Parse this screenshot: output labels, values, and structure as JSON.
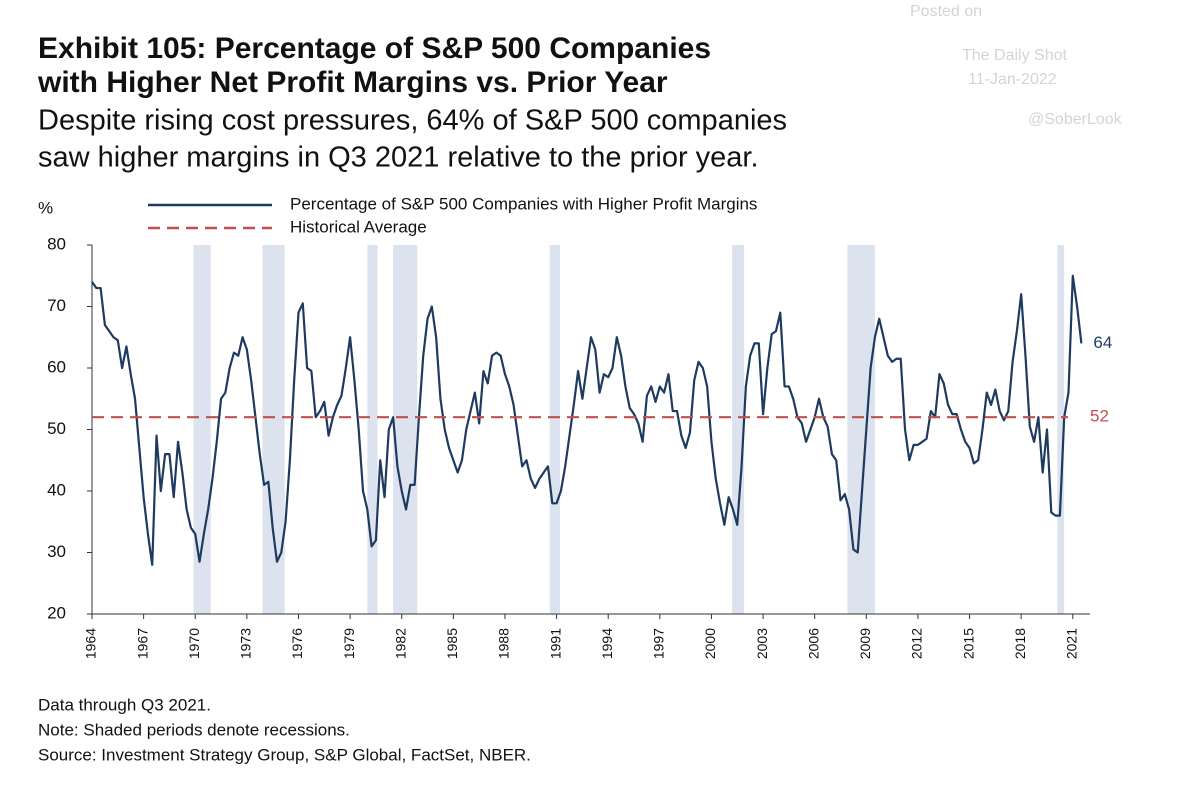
{
  "chart_data": {
    "type": "line",
    "title": [
      "Exhibit 105: Percentage of S&P 500 Companies",
      "with Higher Net Profit Margins vs. Prior Year"
    ],
    "subtitle": [
      "Despite rising cost pressures, 64% of S&P 500 companies",
      "saw higher margins in Q3 2021 relative to the prior year."
    ],
    "y_label": "%",
    "watermark": [
      "Posted on",
      "The Daily Shot",
      "11-Jan-2022",
      "@SoberLook"
    ],
    "notes": [
      "Data through Q3 2021.",
      "Note: Shaded periods denote recessions.",
      "Source: Investment Strategy Group, S&P Global, FactSet, NBER."
    ],
    "xlim": [
      1964,
      2022
    ],
    "xticks": [
      1964,
      1967,
      1970,
      1973,
      1976,
      1979,
      1982,
      1985,
      1988,
      1991,
      1994,
      1997,
      2000,
      2003,
      2006,
      2009,
      2012,
      2015,
      2018,
      2021
    ],
    "ylim": [
      20,
      80
    ],
    "yticks": [
      20,
      30,
      40,
      50,
      60,
      70,
      80
    ],
    "grid": false,
    "recessions": [
      [
        1969.9,
        1970.9
      ],
      [
        1973.9,
        1975.2
      ],
      [
        1980.0,
        1980.6
      ],
      [
        1981.5,
        1982.9
      ],
      [
        1990.6,
        1991.2
      ],
      [
        2001.2,
        2001.9
      ],
      [
        2007.9,
        2009.5
      ],
      [
        2020.1,
        2020.5
      ]
    ],
    "recession_color": "#dde3ee",
    "x": [
      1964.0,
      1964.25,
      1964.5,
      1964.75,
      1965.0,
      1965.25,
      1965.5,
      1965.75,
      1966.0,
      1966.25,
      1966.5,
      1966.75,
      1967.0,
      1967.25,
      1967.5,
      1967.75,
      1968.0,
      1968.25,
      1968.5,
      1968.75,
      1969.0,
      1969.25,
      1969.5,
      1969.75,
      1970.0,
      1970.25,
      1970.5,
      1970.75,
      1971.0,
      1971.25,
      1971.5,
      1971.75,
      1972.0,
      1972.25,
      1972.5,
      1972.75,
      1973.0,
      1973.25,
      1973.5,
      1973.75,
      1974.0,
      1974.25,
      1974.5,
      1974.75,
      1975.0,
      1975.25,
      1975.5,
      1975.75,
      1976.0,
      1976.25,
      1976.5,
      1976.75,
      1977.0,
      1977.25,
      1977.5,
      1977.75,
      1978.0,
      1978.25,
      1978.5,
      1978.75,
      1979.0,
      1979.25,
      1979.5,
      1979.75,
      1980.0,
      1980.25,
      1980.5,
      1980.75,
      1981.0,
      1981.25,
      1981.5,
      1981.75,
      1982.0,
      1982.25,
      1982.5,
      1982.75,
      1983.0,
      1983.25,
      1983.5,
      1983.75,
      1984.0,
      1984.25,
      1984.5,
      1984.75,
      1985.0,
      1985.25,
      1985.5,
      1985.75,
      1986.0,
      1986.25,
      1986.5,
      1986.75,
      1987.0,
      1987.25,
      1987.5,
      1987.75,
      1988.0,
      1988.25,
      1988.5,
      1988.75,
      1989.0,
      1989.25,
      1989.5,
      1989.75,
      1990.0,
      1990.25,
      1990.5,
      1990.75,
      1991.0,
      1991.25,
      1991.5,
      1991.75,
      1992.0,
      1992.25,
      1992.5,
      1992.75,
      1993.0,
      1993.25,
      1993.5,
      1993.75,
      1994.0,
      1994.25,
      1994.5,
      1994.75,
      1995.0,
      1995.25,
      1995.5,
      1995.75,
      1996.0,
      1996.25,
      1996.5,
      1996.75,
      1997.0,
      1997.25,
      1997.5,
      1997.75,
      1998.0,
      1998.25,
      1998.5,
      1998.75,
      1999.0,
      1999.25,
      1999.5,
      1999.75,
      2000.0,
      2000.25,
      2000.5,
      2000.75,
      2001.0,
      2001.25,
      2001.5,
      2001.75,
      2002.0,
      2002.25,
      2002.5,
      2002.75,
      2003.0,
      2003.25,
      2003.5,
      2003.75,
      2004.0,
      2004.25,
      2004.5,
      2004.75,
      2005.0,
      2005.25,
      2005.5,
      2005.75,
      2006.0,
      2006.25,
      2006.5,
      2006.75,
      2007.0,
      2007.25,
      2007.5,
      2007.75,
      2008.0,
      2008.25,
      2008.5,
      2008.75,
      2009.0,
      2009.25,
      2009.5,
      2009.75,
      2010.0,
      2010.25,
      2010.5,
      2010.75,
      2011.0,
      2011.25,
      2011.5,
      2011.75,
      2012.0,
      2012.25,
      2012.5,
      2012.75,
      2013.0,
      2013.25,
      2013.5,
      2013.75,
      2014.0,
      2014.25,
      2014.5,
      2014.75,
      2015.0,
      2015.25,
      2015.5,
      2015.75,
      2016.0,
      2016.25,
      2016.5,
      2016.75,
      2017.0,
      2017.25,
      2017.5,
      2017.75,
      2018.0,
      2018.25,
      2018.5,
      2018.75,
      2019.0,
      2019.25,
      2019.5,
      2019.75,
      2020.0,
      2020.25,
      2020.5,
      2020.75,
      2021.0,
      2021.25,
      2021.5
    ],
    "series": [
      {
        "name": "Percentage of S&P 500 Companies with Higher Profit Margins",
        "color": "#1f3a5f",
        "values": [
          74,
          73,
          73,
          67,
          66,
          65,
          64.5,
          60,
          63.5,
          59,
          55,
          47,
          39,
          33,
          28,
          49,
          40,
          46,
          46,
          39,
          48,
          43,
          37,
          34,
          33,
          28.5,
          33,
          37,
          42,
          48,
          55,
          56,
          60,
          62.5,
          62,
          65,
          63,
          58,
          52,
          46,
          41,
          41.5,
          34,
          28.5,
          30,
          35,
          45,
          58,
          69,
          70.5,
          60,
          59.5,
          52,
          53,
          54.5,
          49,
          52,
          54,
          55.5,
          60,
          65,
          58,
          50,
          40,
          37,
          31,
          32,
          45,
          39,
          50,
          52,
          44,
          40,
          37,
          41,
          41,
          52,
          62,
          68,
          70,
          65,
          55,
          50,
          47,
          45,
          43,
          45,
          50,
          53,
          56,
          51,
          59.5,
          57.5,
          62,
          62.5,
          62,
          59,
          57,
          54,
          49,
          44,
          45,
          42,
          40.5,
          42,
          43,
          44,
          38,
          38,
          40,
          44,
          49,
          54,
          59.5,
          55,
          60,
          65,
          63,
          56,
          59,
          58.5,
          60,
          65,
          62,
          57,
          53.5,
          52.5,
          51,
          48,
          55.5,
          57,
          54.5,
          57,
          56,
          59,
          53,
          53,
          49,
          47,
          49.5,
          58,
          61,
          60,
          57,
          48,
          42,
          38,
          34.5,
          39,
          37,
          34.5,
          44,
          57,
          62,
          64,
          64,
          52.5,
          60,
          65.5,
          66,
          69,
          57,
          57,
          55,
          52,
          51,
          48,
          50,
          52,
          55,
          52,
          50.5,
          46,
          45,
          38.5,
          39.5,
          37,
          30.5,
          30,
          40,
          50,
          60,
          65,
          68,
          65,
          62,
          61,
          61.5,
          61.5,
          50,
          45,
          47.5,
          47.5,
          48,
          48.5,
          53,
          52,
          59,
          57.5,
          54,
          52.5,
          52.5,
          50,
          48,
          47,
          44.5,
          45,
          50,
          56,
          54,
          56.5,
          53,
          51.5,
          53,
          61,
          66,
          72,
          62,
          50.5,
          48,
          52,
          43,
          50,
          36.5,
          36,
          36,
          52,
          56,
          75,
          70,
          64
        ]
      },
      {
        "name": "Historical Average",
        "color": "#c0504d",
        "style": "dashed",
        "value": 52
      }
    ]
  }
}
